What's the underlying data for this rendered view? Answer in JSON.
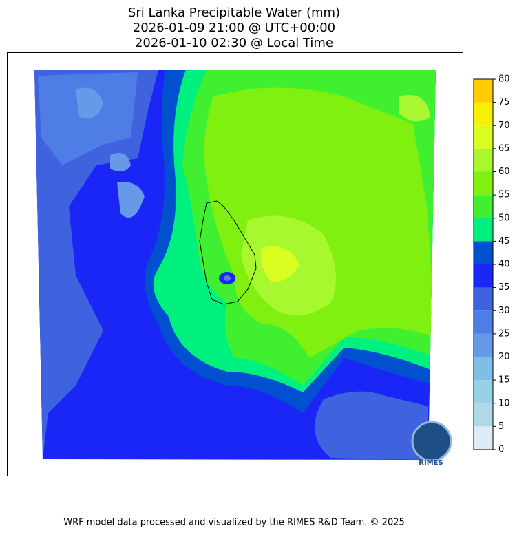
{
  "title": [
    "Sri Lanka Precipitable Water (mm)",
    "2026-01-09 21:00 @ UTC+00:00",
    "2026-01-10 02:30 @ Local Time"
  ],
  "colorbar": {
    "lim": [
      0,
      80
    ],
    "ticks": [
      0,
      5,
      10,
      15,
      20,
      25,
      30,
      35,
      40,
      45,
      50,
      55,
      60,
      65,
      70,
      75,
      80
    ],
    "colors": [
      "#dcebf5",
      "#b0d8e6",
      "#98d0e8",
      "#7fbfe6",
      "#6699e8",
      "#4f7de6",
      "#3f63df",
      "#1a26f5",
      "#0050d0",
      "#00f080",
      "#40f030",
      "#80f010",
      "#a8f830",
      "#d8ff20",
      "#f8f000",
      "#ffcc00"
    ]
  },
  "logo_text": "RIMES",
  "footer": "WRF model data processed and visualized by the RIMES R&D Team. © 2025"
}
